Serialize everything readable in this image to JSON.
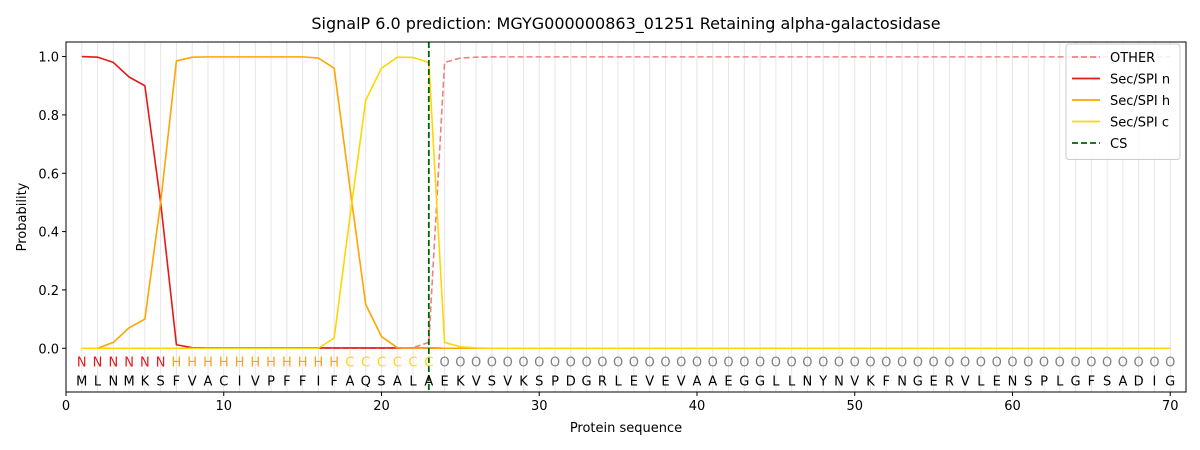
{
  "chart_data": {
    "type": "line",
    "title": "SignalP 6.0 prediction: MGYG000000863_01251 Retaining alpha-galactosidase",
    "xlabel": "Protein sequence",
    "ylabel": "Probability",
    "xlim": [
      0,
      71
    ],
    "ylim": [
      -0.15,
      1.05
    ],
    "x_ticks": [
      0,
      10,
      20,
      30,
      40,
      50,
      60,
      70
    ],
    "y_ticks": [
      0.0,
      0.2,
      0.4,
      0.6,
      0.8,
      1.0
    ],
    "grid": "vertical lines at each residue",
    "legend_position": "top-right",
    "sequence": [
      "M",
      "L",
      "N",
      "M",
      "K",
      "S",
      "F",
      "V",
      "A",
      "C",
      "I",
      "V",
      "P",
      "F",
      "F",
      "I",
      "F",
      "A",
      "Q",
      "S",
      "A",
      "L",
      "A",
      "E",
      "K",
      "V",
      "S",
      "V",
      "K",
      "S",
      "P",
      "D",
      "G",
      "R",
      "L",
      "E",
      "V",
      "E",
      "V",
      "A",
      "A",
      "E",
      "G",
      "G",
      "L",
      "L",
      "N",
      "Y",
      "N",
      "V",
      "K",
      "F",
      "N",
      "G",
      "E",
      "R",
      "V",
      "L",
      "E",
      "N",
      "S",
      "P",
      "L",
      "G",
      "F",
      "S",
      "A",
      "D",
      "I",
      "G"
    ],
    "annotation": [
      "N",
      "N",
      "N",
      "N",
      "N",
      "N",
      "H",
      "H",
      "H",
      "H",
      "H",
      "H",
      "H",
      "H",
      "H",
      "H",
      "H",
      "C",
      "C",
      "C",
      "C",
      "C",
      "C",
      "O",
      "O",
      "O",
      "O",
      "O",
      "O",
      "O",
      "O",
      "O",
      "O",
      "O",
      "O",
      "O",
      "O",
      "O",
      "O",
      "O",
      "O",
      "O",
      "O",
      "O",
      "O",
      "O",
      "O",
      "O",
      "O",
      "O",
      "O",
      "O",
      "O",
      "O",
      "O",
      "O",
      "O",
      "O",
      "O",
      "O",
      "O",
      "O",
      "O",
      "O",
      "O",
      "O",
      "O",
      "O",
      "O",
      "O"
    ],
    "annotation_colors": {
      "N": "#e31a1c",
      "H": "#ffa500",
      "C": "#ffd700",
      "O": "#808080"
    },
    "cleavage_site": 23,
    "series": [
      {
        "name": "OTHER",
        "color": "#f08080",
        "dash": true,
        "values": [
          0,
          0,
          0,
          0,
          0,
          0,
          0,
          0,
          0,
          0,
          0,
          0,
          0,
          0,
          0,
          0,
          0,
          0,
          0,
          0,
          0,
          0.002,
          0.02,
          0.98,
          0.995,
          0.998,
          0.999,
          0.999,
          0.999,
          0.999,
          0.999,
          0.999,
          0.999,
          0.999,
          0.999,
          0.999,
          0.999,
          0.999,
          0.999,
          0.999,
          0.999,
          0.999,
          0.999,
          0.999,
          0.999,
          0.999,
          0.999,
          0.999,
          0.999,
          0.999,
          0.999,
          0.999,
          0.999,
          0.999,
          0.999,
          0.999,
          0.999,
          0.999,
          0.999,
          0.999,
          0.999,
          0.999,
          0.999,
          0.999,
          0.999,
          0.999,
          0.999,
          0.999,
          0.999,
          0.999
        ]
      },
      {
        "name": "Sec/SPI n",
        "color": "#e31a1c",
        "dash": false,
        "values": [
          1.0,
          0.998,
          0.98,
          0.93,
          0.9,
          0.5,
          0.012,
          0.002,
          0.001,
          0.001,
          0.001,
          0.001,
          0.001,
          0.001,
          0.001,
          0.001,
          0.001,
          0.001,
          0.001,
          0.001,
          0.001,
          0.001,
          0.001,
          0,
          0,
          0,
          0,
          0,
          0,
          0,
          0,
          0,
          0,
          0,
          0,
          0,
          0,
          0,
          0,
          0,
          0,
          0,
          0,
          0,
          0,
          0,
          0,
          0,
          0,
          0,
          0,
          0,
          0,
          0,
          0,
          0,
          0,
          0,
          0,
          0,
          0,
          0,
          0,
          0,
          0,
          0,
          0,
          0,
          0,
          0
        ]
      },
      {
        "name": "Sec/SPI h",
        "color": "#ffa500",
        "dash": false,
        "values": [
          0,
          0,
          0.02,
          0.07,
          0.1,
          0.5,
          0.985,
          0.998,
          0.999,
          0.999,
          0.999,
          0.999,
          0.999,
          0.999,
          0.999,
          0.995,
          0.96,
          0.55,
          0.15,
          0.04,
          0.002,
          0.001,
          0.001,
          0,
          0,
          0,
          0,
          0,
          0,
          0,
          0,
          0,
          0,
          0,
          0,
          0,
          0,
          0,
          0,
          0,
          0,
          0,
          0,
          0,
          0,
          0,
          0,
          0,
          0,
          0,
          0,
          0,
          0,
          0,
          0,
          0,
          0,
          0,
          0,
          0,
          0,
          0,
          0,
          0,
          0,
          0,
          0,
          0,
          0,
          0
        ]
      },
      {
        "name": "Sec/SPI c",
        "color": "#ffd700",
        "dash": false,
        "values": [
          0,
          0,
          0,
          0,
          0,
          0,
          0,
          0,
          0,
          0,
          0,
          0,
          0,
          0,
          0,
          0,
          0.035,
          0.45,
          0.85,
          0.96,
          0.998,
          0.997,
          0.98,
          0.02,
          0.005,
          0.001,
          0,
          0,
          0,
          0,
          0,
          0,
          0,
          0,
          0,
          0,
          0,
          0,
          0,
          0,
          0,
          0,
          0,
          0,
          0,
          0,
          0,
          0,
          0,
          0,
          0,
          0,
          0,
          0,
          0,
          0,
          0,
          0,
          0,
          0,
          0,
          0,
          0,
          0,
          0,
          0,
          0,
          0,
          0,
          0
        ]
      }
    ],
    "legend": [
      {
        "label": "OTHER",
        "color": "#f08080",
        "dash": true
      },
      {
        "label": "Sec/SPI n",
        "color": "#e31a1c",
        "dash": false
      },
      {
        "label": "Sec/SPI h",
        "color": "#ffa500",
        "dash": false
      },
      {
        "label": "Sec/SPI c",
        "color": "#ffd700",
        "dash": false
      },
      {
        "label": "CS",
        "color": "#006400",
        "dash": true
      }
    ]
  }
}
